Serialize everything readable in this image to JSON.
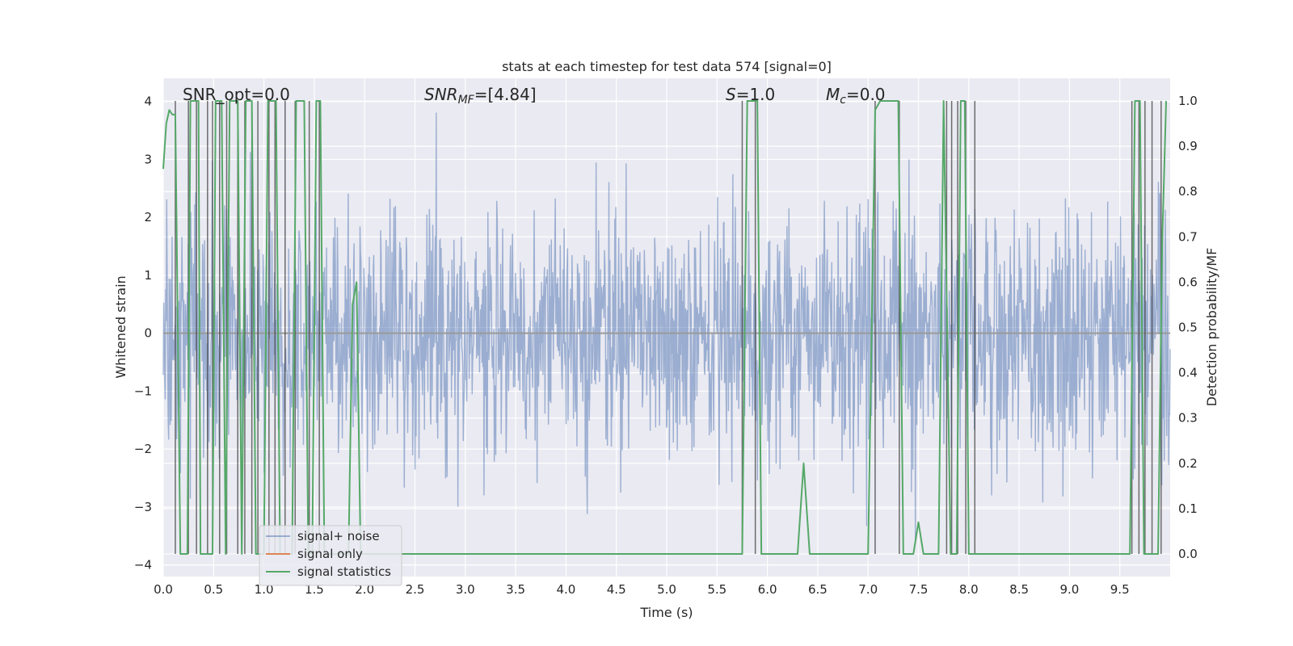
{
  "chart_data": {
    "type": "line",
    "title": "stats at each timestep for test data 574 [signal=0]",
    "xlabel": "Time (s)",
    "ylabel": "Whitened strain",
    "y2label": "Detection probability/MF",
    "xlim": [
      0,
      10
    ],
    "ylim": [
      -4.2,
      4.4
    ],
    "y2lim": [
      -0.05,
      1.05
    ],
    "xticks": [
      "0.0",
      "0.5",
      "1.0",
      "1.5",
      "2.0",
      "2.5",
      "3.0",
      "3.5",
      "4.0",
      "4.5",
      "5.0",
      "5.5",
      "6.0",
      "6.5",
      "7.0",
      "7.5",
      "8.0",
      "8.5",
      "9.0",
      "9.5"
    ],
    "yticks": [
      "4",
      "3",
      "2",
      "1",
      "0",
      "−1",
      "−2",
      "−3",
      "−4"
    ],
    "y2ticks": [
      "1.0",
      "0.9",
      "0.8",
      "0.7",
      "0.6",
      "0.5",
      "0.4",
      "0.3",
      "0.2",
      "0.1",
      "0.0"
    ],
    "grid": true,
    "legend": {
      "position": "lower-left",
      "entries": [
        "signal+ noise",
        "signal only",
        "signal statistics"
      ]
    },
    "annotations": {
      "snr_opt": "SNR_opt=0.0",
      "snr_mf_symbol": "SNR",
      "snr_mf_sub": "MF",
      "snr_mf_value": "=[4.84]",
      "s_symbol": "S",
      "s_value": "=1.0",
      "mc_symbol": "M",
      "mc_sub": "c",
      "mc_value": "=0.0"
    },
    "series": [
      {
        "name": "signal+ noise",
        "kind": "noise",
        "axis": "left",
        "sigma": 1.0,
        "approx_range": [
          -3.6,
          4.0
        ],
        "samples": 2048
      },
      {
        "name": "signal only",
        "kind": "line",
        "axis": "left",
        "values": []
      },
      {
        "name": "signal statistics",
        "kind": "line",
        "axis": "right",
        "x": [
          0.0,
          0.03,
          0.06,
          0.09,
          0.12,
          0.17,
          0.2,
          0.24,
          0.27,
          0.32,
          0.35,
          0.37,
          0.4,
          0.44,
          0.49,
          0.52,
          0.56,
          0.58,
          0.62,
          0.66,
          0.7,
          0.74,
          0.78,
          0.82,
          0.85,
          0.88,
          0.92,
          0.96,
          1.0,
          1.04,
          1.08,
          1.12,
          1.16,
          1.2,
          1.24,
          1.28,
          1.32,
          1.36,
          1.4,
          1.44,
          1.48,
          1.52,
          1.56,
          1.6,
          1.64,
          1.68,
          1.72,
          1.76,
          1.8,
          1.84,
          1.88,
          1.92,
          1.96,
          2.0,
          2.05,
          5.5,
          5.75,
          5.8,
          5.86,
          5.9,
          5.94,
          5.98,
          6.3,
          6.36,
          6.42,
          6.48,
          7.0,
          7.07,
          7.12,
          7.18,
          7.3,
          7.35,
          7.45,
          7.5,
          7.55,
          7.63,
          7.7,
          7.75,
          7.82,
          7.88,
          7.92,
          7.96,
          8.0,
          8.06,
          8.1,
          9.6,
          9.65,
          9.7,
          9.74,
          9.79,
          9.84,
          9.88,
          9.92,
          9.96
        ],
        "values": [
          0.85,
          0.95,
          0.98,
          0.97,
          0.97,
          0.0,
          0.0,
          0.0,
          1.0,
          1.0,
          1.0,
          0.0,
          0.0,
          0.0,
          0.0,
          1.0,
          1.0,
          1.0,
          0.0,
          1.0,
          1.0,
          1.0,
          0.0,
          1.0,
          1.0,
          1.0,
          0.0,
          0.0,
          0.0,
          1.0,
          1.0,
          1.0,
          0.0,
          0.0,
          0.0,
          0.0,
          1.0,
          1.0,
          1.0,
          0.0,
          0.0,
          1.0,
          1.0,
          0.0,
          0.0,
          0.0,
          0.0,
          0.0,
          0.0,
          0.0,
          0.55,
          0.6,
          0.0,
          0.0,
          0.0,
          0.0,
          0.0,
          1.0,
          1.0,
          1.0,
          0.0,
          0.0,
          0.0,
          0.2,
          0.0,
          0.0,
          0.0,
          0.98,
          1.0,
          1.0,
          1.0,
          0.0,
          0.0,
          0.07,
          0.0,
          0.0,
          0.0,
          1.0,
          0.0,
          0.0,
          1.0,
          1.0,
          0.0,
          0.0,
          0.0,
          0.0,
          1.0,
          1.0,
          0.0,
          0.0,
          0.0,
          0.0,
          0.68,
          1.0
        ]
      }
    ],
    "vertical_markers": [
      0.12,
      0.25,
      0.33,
      0.44,
      0.49,
      0.56,
      0.63,
      0.74,
      0.81,
      0.88,
      0.94,
      1.05,
      1.11,
      1.21,
      1.31,
      1.45,
      1.55,
      5.75,
      5.88,
      7.07,
      7.31,
      7.78,
      7.83,
      7.89,
      7.97,
      8.06,
      9.62,
      9.69,
      9.75,
      9.82,
      9.91
    ],
    "colors": {
      "signal_noise": "#4c72b0",
      "signal_only": "#dd8452",
      "signal_statistics": "#55a868",
      "marker": "#404040",
      "plot_bg": "#eaeaf2",
      "grid": "#ffffff"
    }
  }
}
